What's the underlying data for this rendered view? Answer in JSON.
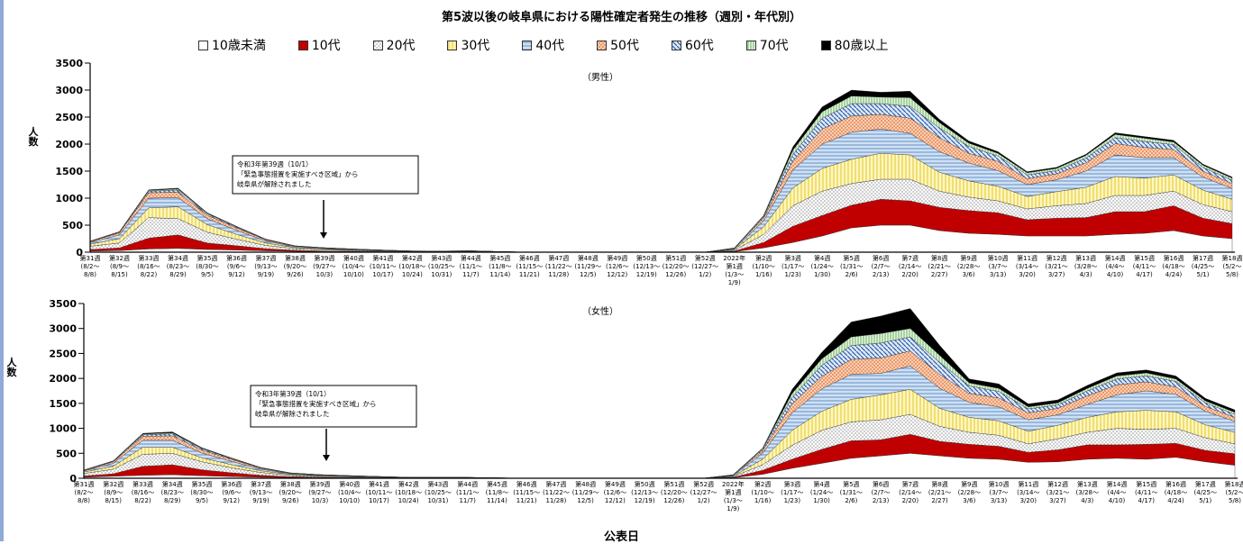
{
  "chart_data": {
    "type": "area",
    "title": "第5波以後の岐阜県における陽性確定者発生の推移（週別・年代別）",
    "xlabel": "公表日",
    "ylabel": "人数",
    "ylim": [
      0,
      3500
    ],
    "yticks": [
      0,
      500,
      1000,
      1500,
      2000,
      2500,
      3000,
      3500
    ],
    "stacked": true,
    "legend_position": "top",
    "categories": [
      [
        "第31週",
        "(8/2～",
        "8/8)"
      ],
      [
        "第32週",
        "(8/9～",
        "8/15)"
      ],
      [
        "第33週",
        "(8/16～",
        "8/22)"
      ],
      [
        "第34週",
        "(8/23～",
        "8/29)"
      ],
      [
        "第35週",
        "(8/30～",
        "9/5)"
      ],
      [
        "第36週",
        "(9/6～",
        "9/12)"
      ],
      [
        "第37週",
        "(9/13～",
        "9/19)"
      ],
      [
        "第38週",
        "(9/20～",
        "9/26)"
      ],
      [
        "第39週",
        "(9/27～",
        "10/3)"
      ],
      [
        "第40週",
        "(10/4～",
        "10/10)"
      ],
      [
        "第41週",
        "(10/11～",
        "10/17)"
      ],
      [
        "第42週",
        "(10/18～",
        "10/24)"
      ],
      [
        "第43週",
        "(10/25～",
        "10/31)"
      ],
      [
        "第44週",
        "(11/1～",
        "11/7)"
      ],
      [
        "第45週",
        "(11/8～",
        "11/14)"
      ],
      [
        "第46週",
        "(11/15～",
        "11/21)"
      ],
      [
        "第47週",
        "(11/22～",
        "11/28)"
      ],
      [
        "第48週",
        "(11/29～",
        "12/5)"
      ],
      [
        "第49週",
        "(12/6～",
        "12/12)"
      ],
      [
        "第50週",
        "(12/13～",
        "12/19)"
      ],
      [
        "第51週",
        "(12/20～",
        "12/26)"
      ],
      [
        "第52週",
        "(12/27～",
        "1/2)"
      ],
      [
        "2022年",
        "第1週",
        "(1/3～",
        "1/9)"
      ],
      [
        "第2週",
        "(1/10～",
        "1/16)"
      ],
      [
        "第3週",
        "(1/17～",
        "1/23)"
      ],
      [
        "第4週",
        "(1/24～",
        "1/30)"
      ],
      [
        "第5週",
        "(1/31～",
        "2/6)"
      ],
      [
        "第6週",
        "(2/7～",
        "2/13)"
      ],
      [
        "第7週",
        "(2/14～",
        "2/20)"
      ],
      [
        "第8週",
        "(2/21～",
        "2/27)"
      ],
      [
        "第9週",
        "(2/28～",
        "3/6)"
      ],
      [
        "第10週",
        "(3/7～",
        "3/13)"
      ],
      [
        "第11週",
        "(3/14～",
        "3/20)"
      ],
      [
        "第12週",
        "(3/21～",
        "3/27)"
      ],
      [
        "第13週",
        "(3/28～",
        "4/3)"
      ],
      [
        "第14週",
        "(4/4～",
        "4/10)"
      ],
      [
        "第15週",
        "(4/11～",
        "4/17)"
      ],
      [
        "第16週",
        "(4/18～",
        "4/24)"
      ],
      [
        "第17週",
        "(4/25～",
        "5/1)"
      ],
      [
        "第18週",
        "(5/2～",
        "5/8)"
      ]
    ],
    "series_names": [
      "10歳未満",
      "10代",
      "20代",
      "30代",
      "40代",
      "50代",
      "60代",
      "70代",
      "80歳以上"
    ],
    "series_colors": [
      "#ffffff",
      "#c00000",
      "#ffffff",
      "#fff2a8",
      "#b8d4ee",
      "#f7c7a8",
      "#4f7fc0",
      "#cfe9c6",
      "#000000"
    ],
    "panels": [
      {
        "label": "（男性）",
        "annotation": [
          "令和3年第39週（10/1）",
          "「緊急事態措置を実施すべき区域」から",
          "岐阜県が解除されました"
        ],
        "series": [
          {
            "name": "10歳未満",
            "values": [
              20,
              30,
              60,
              70,
              50,
              40,
              25,
              15,
              10,
              8,
              5,
              3,
              2,
              2,
              1,
              0,
              0,
              0,
              0,
              0,
              0,
              0,
              10,
              80,
              180,
              300,
              450,
              500,
              500,
              400,
              350,
              330,
              300,
              300,
              300,
              330,
              350,
              400,
              300,
              250
            ]
          },
          {
            "name": "10代",
            "values": [
              30,
              50,
              200,
              250,
              120,
              80,
              40,
              20,
              12,
              8,
              5,
              3,
              2,
              3,
              1,
              0,
              0,
              0,
              0,
              0,
              0,
              0,
              10,
              100,
              300,
              380,
              420,
              480,
              450,
              430,
              420,
              400,
              300,
              330,
              340,
              420,
              400,
              460,
              330,
              280
            ]
          },
          {
            "name": "20代",
            "values": [
              60,
              90,
              380,
              300,
              200,
              120,
              60,
              30,
              20,
              15,
              10,
              5,
              5,
              7,
              3,
              0,
              0,
              0,
              0,
              0,
              0,
              0,
              15,
              150,
              380,
              450,
              400,
              370,
              400,
              300,
              250,
              220,
              200,
              230,
              260,
              300,
              300,
              270,
              250,
              220
            ]
          },
          {
            "name": "30代",
            "values": [
              40,
              80,
              180,
              220,
              140,
              90,
              45,
              20,
              15,
              10,
              7,
              4,
              4,
              5,
              2,
              0,
              0,
              0,
              0,
              0,
              0,
              0,
              15,
              140,
              330,
              420,
              450,
              480,
              450,
              350,
              300,
              270,
              230,
              260,
              300,
              350,
              320,
              300,
              270,
              230
            ]
          },
          {
            "name": "40代",
            "values": [
              30,
              70,
              180,
              170,
              110,
              75,
              35,
              15,
              12,
              8,
              6,
              3,
              4,
              4,
              2,
              0,
              0,
              0,
              0,
              0,
              0,
              0,
              12,
              110,
              330,
              450,
              500,
              450,
              400,
              380,
              330,
              290,
              220,
              220,
              300,
              400,
              380,
              320,
              240,
              200
            ]
          },
          {
            "name": "50代",
            "values": [
              15,
              40,
              100,
              100,
              65,
              45,
              22,
              10,
              8,
              6,
              4,
              2,
              2,
              3,
              1,
              0,
              0,
              0,
              0,
              0,
              0,
              0,
              8,
              50,
              170,
              280,
              300,
              270,
              280,
              260,
              180,
              170,
              110,
              110,
              150,
              210,
              190,
              150,
              110,
              90
            ]
          },
          {
            "name": "60代",
            "values": [
              5,
              10,
              30,
              40,
              25,
              15,
              8,
              4,
              3,
              2,
              1,
              1,
              1,
              1,
              0,
              0,
              0,
              0,
              0,
              0,
              0,
              0,
              4,
              25,
              120,
              200,
              230,
              200,
              220,
              180,
              130,
              100,
              70,
              60,
              90,
              110,
              110,
              90,
              70,
              60
            ]
          },
          {
            "name": "70代",
            "values": [
              3,
              5,
              15,
              20,
              12,
              8,
              4,
              2,
              1,
              1,
              1,
              0,
              0,
              0,
              0,
              0,
              0,
              0,
              0,
              0,
              0,
              0,
              2,
              15,
              80,
              120,
              140,
              120,
              160,
              100,
              60,
              50,
              40,
              40,
              50,
              60,
              60,
              50,
              40,
              40
            ]
          },
          {
            "name": "80歳以上",
            "values": [
              2,
              5,
              10,
              15,
              8,
              5,
              3,
              1,
              1,
              1,
              0,
              0,
              0,
              0,
              0,
              0,
              0,
              0,
              0,
              0,
              0,
              0,
              2,
              10,
              60,
              90,
              110,
              90,
              120,
              60,
              40,
              30,
              20,
              20,
              20,
              30,
              30,
              30,
              20,
              20
            ]
          }
        ]
      },
      {
        "label": "（女性）",
        "annotation": [
          "令和3年第39週（10/1）",
          "「緊急事態措置を実施すべき区域」から",
          "岐阜県が解除されました"
        ],
        "series": [
          {
            "name": "10歳未満",
            "values": [
              20,
              40,
              60,
              70,
              50,
              35,
              20,
              12,
              8,
              6,
              4,
              2,
              2,
              2,
              1,
              0,
              0,
              0,
              0,
              0,
              0,
              0,
              10,
              80,
              200,
              300,
              400,
              450,
              500,
              450,
              400,
              380,
              320,
              330,
              380,
              400,
              380,
              420,
              330,
              260
            ]
          },
          {
            "name": "10代",
            "values": [
              25,
              50,
              180,
              200,
              120,
              75,
              40,
              20,
              12,
              8,
              5,
              3,
              2,
              2,
              1,
              0,
              0,
              0,
              0,
              0,
              0,
              0,
              10,
              80,
              180,
              280,
              350,
              320,
              380,
              290,
              280,
              260,
              200,
              240,
              290,
              270,
              300,
              280,
              230,
              230
            ]
          },
          {
            "name": "20代",
            "values": [
              50,
              90,
              240,
              230,
              160,
              100,
              55,
              25,
              17,
              12,
              8,
              4,
              4,
              4,
              2,
              0,
              0,
              0,
              0,
              0,
              0,
              0,
              12,
              110,
              280,
              380,
              380,
              400,
              400,
              300,
              240,
              220,
              170,
              220,
              250,
              330,
              300,
              300,
              250,
              200
            ]
          },
          {
            "name": "30代",
            "values": [
              30,
              60,
              140,
              120,
              80,
              65,
              35,
              18,
              12,
              10,
              7,
              3,
              3,
              3,
              1,
              0,
              0,
              0,
              0,
              0,
              0,
              0,
              12,
              110,
              300,
              380,
              450,
              500,
              500,
              360,
              300,
              290,
              250,
              270,
              300,
              330,
              380,
              330,
              260,
              230
            ]
          },
          {
            "name": "40代",
            "values": [
              20,
              60,
              140,
              140,
              95,
              65,
              30,
              15,
              11,
              8,
              5,
              3,
              3,
              3,
              1,
              0,
              0,
              0,
              0,
              0,
              0,
              0,
              12,
              120,
              350,
              450,
              500,
              430,
              470,
              400,
              300,
              280,
              230,
              210,
              260,
              340,
              390,
              350,
              270,
              220
            ]
          },
          {
            "name": "50代",
            "values": [
              10,
              30,
              80,
              90,
              60,
              40,
              20,
              10,
              7,
              5,
              3,
              2,
              2,
              2,
              1,
              0,
              0,
              0,
              0,
              0,
              0,
              0,
              7,
              50,
              180,
              250,
              300,
              310,
              300,
              280,
              180,
              180,
              140,
              130,
              170,
              200,
              180,
              150,
              100,
              80
            ]
          },
          {
            "name": "60代",
            "values": [
              5,
              10,
              30,
              40,
              25,
              15,
              8,
              4,
              3,
              2,
              1,
              1,
              1,
              1,
              0,
              0,
              0,
              0,
              0,
              0,
              0,
              0,
              4,
              30,
              130,
              220,
              280,
              300,
              280,
              240,
              150,
              130,
              80,
              70,
              100,
              120,
              120,
              110,
              70,
              60
            ]
          },
          {
            "name": "70代",
            "values": [
              3,
              5,
              15,
              20,
              12,
              8,
              4,
              2,
              1,
              1,
              1,
              0,
              0,
              0,
              0,
              0,
              0,
              0,
              0,
              0,
              0,
              0,
              2,
              15,
              80,
              130,
              170,
              190,
              170,
              140,
              60,
              60,
              40,
              40,
              50,
              60,
              60,
              50,
              40,
              40
            ]
          },
          {
            "name": "80歳以上",
            "values": [
              2,
              5,
              15,
              20,
              10,
              5,
              3,
              1,
              1,
              1,
              0,
              0,
              0,
              0,
              0,
              0,
              0,
              0,
              0,
              0,
              0,
              0,
              2,
              10,
              80,
              130,
              300,
              350,
              400,
              200,
              80,
              90,
              60,
              60,
              60,
              60,
              60,
              60,
              50,
              50
            ]
          }
        ]
      }
    ]
  }
}
